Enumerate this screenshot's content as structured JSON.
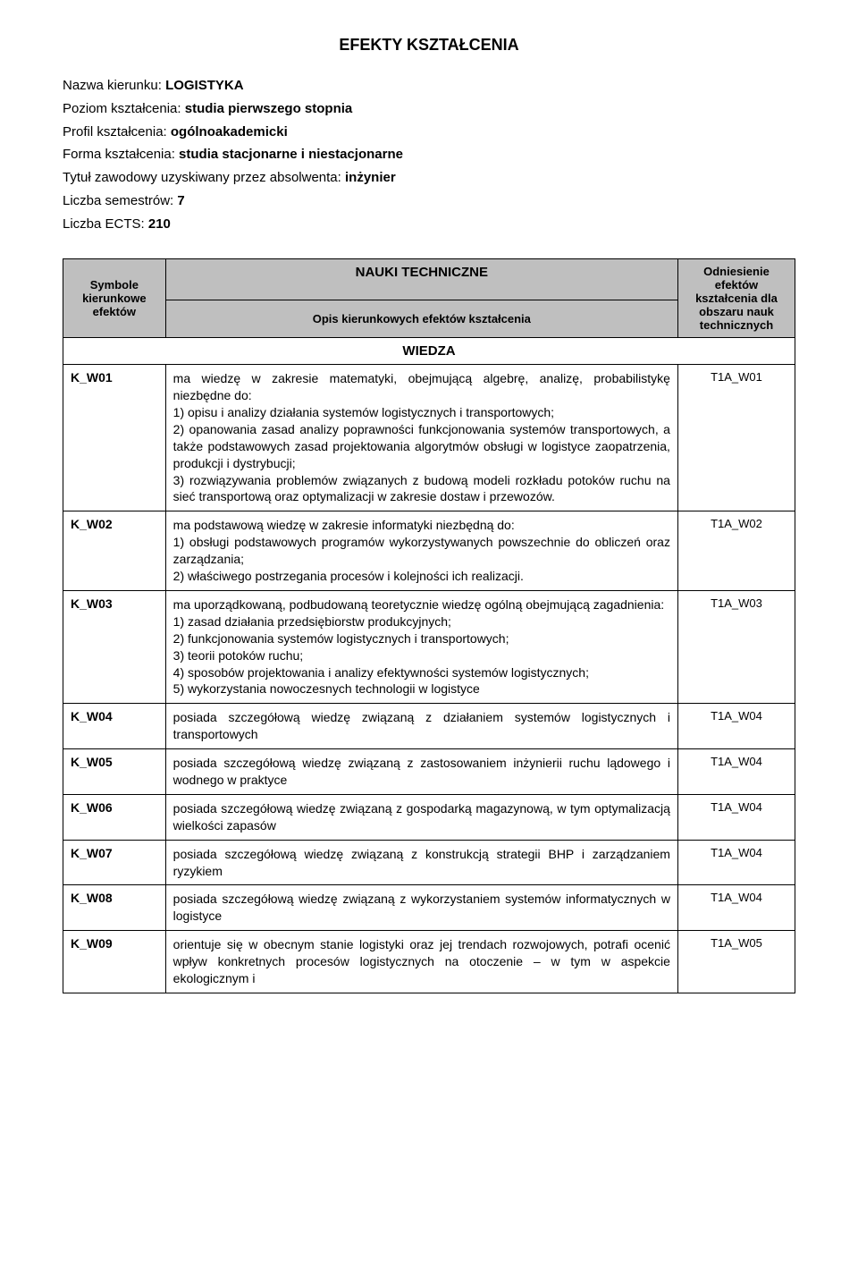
{
  "title": "EFEKTY KSZTAŁCENIA",
  "meta": {
    "nazwa_label": "Nazwa kierunku:",
    "nazwa_val": "LOGISTYKA",
    "poziom_label": "Poziom kształcenia:",
    "poziom_val": "studia pierwszego stopnia",
    "profil_label": "Profil kształcenia:",
    "profil_val": "ogólnoakademicki",
    "forma_label": "Forma kształcenia:",
    "forma_val": "studia stacjonarne i niestacjonarne",
    "tytul_label": "Tytuł zawodowy uzyskiwany przez absolwenta:",
    "tytul_val": "inżynier",
    "sem_label": "Liczba semestrów:",
    "sem_val": "7",
    "ects_label": "Liczba ECTS:",
    "ects_val": "210"
  },
  "table": {
    "header_top": "NAUKI TECHNICZNE",
    "col1": "Symbole kierunkowe efektów",
    "col2": "Opis kierunkowych efektów kształcenia",
    "col3": "Odniesienie efektów kształcenia dla obszaru nauk technicznych",
    "section": "WIEDZA",
    "rows": [
      {
        "code": "K_W01",
        "desc": "ma wiedzę w zakresie matematyki, obejmującą algebrę, analizę, probabilistykę niezbędne do:\n1) opisu i analizy działania systemów logistycznych i transportowych;\n2) opanowania zasad analizy poprawności funkcjonowania systemów transportowych, a także podstawowych zasad projektowania algorytmów obsługi w logistyce zaopatrzenia, produkcji i dystrybucji;\n3) rozwiązywania problemów związanych z budową modeli rozkładu potoków ruchu na sieć transportową oraz optymalizacji w zakresie dostaw i przewozów.",
        "ref": "T1A_W01"
      },
      {
        "code": "K_W02",
        "desc": "ma podstawową wiedzę w zakresie informatyki niezbędną do:\n1) obsługi podstawowych programów wykorzystywanych powszechnie do obliczeń oraz zarządzania;\n2) właściwego postrzegania procesów i kolejności ich realizacji.",
        "ref": "T1A_W02"
      },
      {
        "code": "K_W03",
        "desc": "ma uporządkowaną, podbudowaną teoretycznie wiedzę ogólną obejmującą zagadnienia:\n1) zasad działania przedsiębiorstw produkcyjnych;\n2) funkcjonowania systemów logistycznych i transportowych;\n3) teorii potoków ruchu;\n4) sposobów projektowania i analizy efektywności systemów logistycznych;\n5) wykorzystania nowoczesnych technologii w logistyce",
        "ref": "T1A_W03"
      },
      {
        "code": "K_W04",
        "desc": "posiada szczegółową wiedzę związaną z działaniem systemów logistycznych i transportowych",
        "ref": "T1A_W04"
      },
      {
        "code": "K_W05",
        "desc": "posiada szczegółową wiedzę związaną z zastosowaniem inżynierii ruchu lądowego i wodnego w praktyce",
        "ref": "T1A_W04"
      },
      {
        "code": "K_W06",
        "desc": "posiada szczegółową wiedzę związaną z gospodarką magazynową, w tym optymalizacją wielkości zapasów",
        "ref": "T1A_W04"
      },
      {
        "code": "K_W07",
        "desc": "posiada szczegółową wiedzę związaną z konstrukcją strategii BHP i zarządzaniem ryzykiem",
        "ref": "T1A_W04"
      },
      {
        "code": "K_W08",
        "desc": "posiada szczegółową wiedzę związaną z wykorzystaniem systemów informatycznych w logistyce",
        "ref": "T1A_W04"
      },
      {
        "code": "K_W09",
        "desc": "orientuje się w obecnym stanie logistyki oraz jej trendach rozwojowych, potrafi ocenić wpływ konkretnych procesów logistycznych na otoczenie – w tym w aspekcie ekologicznym i",
        "ref": "T1A_W05"
      }
    ],
    "colors": {
      "header_bg": "#bfbfbf",
      "border": "#000000",
      "page_bg": "#ffffff",
      "text": "#000000"
    },
    "fontsize_body": 14,
    "fontsize_title": 18
  }
}
